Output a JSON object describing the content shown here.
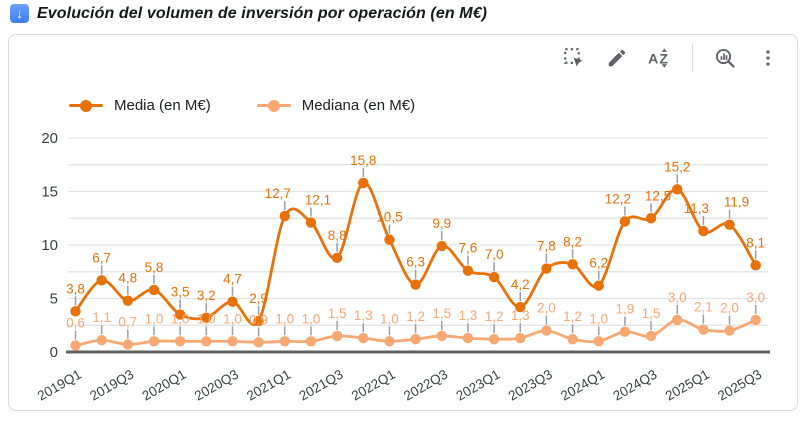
{
  "header": {
    "icon": "down-arrow-button-emoji",
    "title": "Evolución del volumen de inversión por operación (en M€)"
  },
  "toolbar": {
    "icons": [
      "marquee-select",
      "edit-pencil",
      "sort-az",
      "zoom-explore",
      "more-options"
    ]
  },
  "colors": {
    "card_border": "#dadce0",
    "toolbar_icon": "#5f6368",
    "grid_line": "#e3e3e3",
    "axis_line": "#616161",
    "tick_label": "#3c4043",
    "leader_tick": "#9aa0a6",
    "title_icon_blue": "#3d7ef2"
  },
  "chart_data": {
    "type": "line",
    "title": "Evolución del volumen de inversión por operación (en M€)",
    "smooth": true,
    "grid": true,
    "legend_position": "top-left",
    "decimal_separator": ",",
    "categories": [
      "2019Q1",
      "2019Q2",
      "2019Q3",
      "2019Q4",
      "2020Q1",
      "2020Q2",
      "2020Q3",
      "2020Q4",
      "2021Q1",
      "2021Q2",
      "2021Q3",
      "2021Q4",
      "2022Q1",
      "2022Q2",
      "2022Q3",
      "2022Q4",
      "2023Q1",
      "2023Q2",
      "2023Q3",
      "2023Q4",
      "2024Q1",
      "2024Q2",
      "2024Q3",
      "2024Q4",
      "2025Q1",
      "2025Q2",
      "2025Q3"
    ],
    "x_axis": {
      "tick_shown_every": 2,
      "label_rotation_deg": -30
    },
    "y_axis": {
      "ylim": [
        0,
        20
      ],
      "ticks": [
        0,
        5,
        10,
        15,
        20
      ],
      "minor_grid_step": 2.5
    },
    "series": [
      {
        "name": "Media (en M€)",
        "color": "#E8710A",
        "values": [
          3.8,
          6.7,
          4.8,
          5.8,
          3.5,
          3.2,
          4.7,
          2.9,
          12.7,
          12.1,
          8.8,
          15.8,
          10.5,
          6.3,
          9.9,
          7.6,
          7.0,
          4.2,
          7.8,
          8.2,
          6.2,
          12.2,
          12.5,
          15.2,
          11.3,
          11.9,
          8.1
        ]
      },
      {
        "name": "Mediana (en M€)",
        "color": "#F7A873",
        "values": [
          0.6,
          1.1,
          0.7,
          1.0,
          1.0,
          1.0,
          1.0,
          0.9,
          1.0,
          1.0,
          1.5,
          1.3,
          1.0,
          1.2,
          1.5,
          1.3,
          1.2,
          1.3,
          2.0,
          1.2,
          1.0,
          1.9,
          1.5,
          3.0,
          2.1,
          2.0,
          3.0
        ]
      }
    ]
  }
}
